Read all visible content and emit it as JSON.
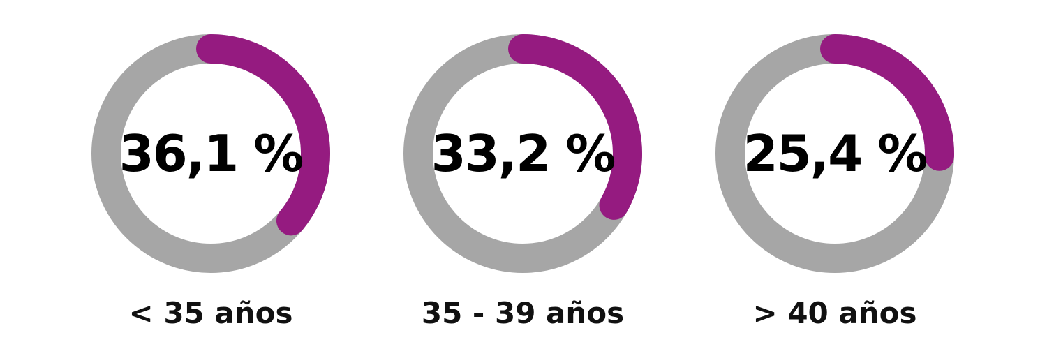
{
  "chart_data": {
    "type": "pie",
    "categories": [
      "< 35 años",
      "35 - 39 años",
      "> 40 años"
    ],
    "values": [
      36.1,
      33.2,
      25.4
    ],
    "value_labels": [
      "36,1 %",
      "33,2 %",
      "25,4 %"
    ],
    "unit": "%",
    "max": 100,
    "colors": {
      "track": "#a6a6a6",
      "progress": "#951b80",
      "text": "#000000"
    }
  }
}
